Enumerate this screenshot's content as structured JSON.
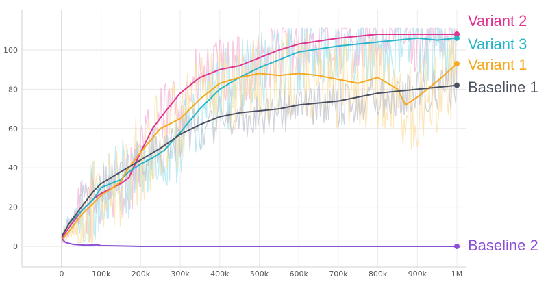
{
  "chart_data": {
    "type": "line",
    "title": "",
    "xlabel": "",
    "ylabel": "",
    "xlim": [
      0,
      1000000
    ],
    "ylim": [
      -5,
      115
    ],
    "grid": true,
    "legend_placement": "right, at line ends",
    "x_ticks": [
      {
        "value": 0,
        "label": "0"
      },
      {
        "value": 100000,
        "label": "100k"
      },
      {
        "value": 200000,
        "label": "200k"
      },
      {
        "value": 300000,
        "label": "300k"
      },
      {
        "value": 400000,
        "label": "400k"
      },
      {
        "value": 500000,
        "label": "500k"
      },
      {
        "value": 600000,
        "label": "600k"
      },
      {
        "value": 700000,
        "label": "700k"
      },
      {
        "value": 800000,
        "label": "800k"
      },
      {
        "value": 900000,
        "label": "900k"
      },
      {
        "value": 1000000,
        "label": "1M"
      }
    ],
    "y_ticks": [
      {
        "value": 0,
        "label": "0"
      },
      {
        "value": 20,
        "label": "20"
      },
      {
        "value": 40,
        "label": "40"
      },
      {
        "value": 60,
        "label": "60"
      },
      {
        "value": 80,
        "label": "80"
      },
      {
        "value": 100,
        "label": "100"
      }
    ],
    "series": [
      {
        "name": "Variant 2",
        "color": "#e0338f",
        "raw_color": "#f6b6d8",
        "noise": 18,
        "x": [
          0,
          20000,
          50000,
          80000,
          100000,
          130000,
          150000,
          170000,
          200000,
          230000,
          260000,
          300000,
          350000,
          400000,
          450000,
          500000,
          550000,
          600000,
          700000,
          800000,
          900000,
          1000000
        ],
        "y": [
          4,
          10,
          18,
          24,
          27,
          30,
          32,
          35,
          48,
          60,
          68,
          78,
          86,
          90,
          92,
          96,
          100,
          103,
          106,
          108,
          108,
          108
        ]
      },
      {
        "name": "Variant 3",
        "color": "#26b5c8",
        "raw_color": "#a8e6f0",
        "noise": 22,
        "x": [
          0,
          20000,
          50000,
          80000,
          100000,
          150000,
          170000,
          200000,
          230000,
          260000,
          300000,
          350000,
          400000,
          450000,
          500000,
          550000,
          600000,
          700000,
          800000,
          900000,
          950000,
          1000000
        ],
        "y": [
          5,
          12,
          18,
          24,
          30,
          34,
          38,
          42,
          45,
          49,
          58,
          70,
          80,
          86,
          91,
          95,
          99,
          102,
          104,
          106,
          105,
          106
        ]
      },
      {
        "name": "Variant 1",
        "color": "#f4a81d",
        "raw_color": "#fbe0a6",
        "noise": 24,
        "x": [
          0,
          20000,
          50000,
          80000,
          100000,
          130000,
          150000,
          160000,
          170000,
          200000,
          250000,
          300000,
          350000,
          400000,
          450000,
          500000,
          550000,
          600000,
          650000,
          700000,
          750000,
          800000,
          850000,
          870000,
          900000,
          950000,
          1000000
        ],
        "y": [
          3,
          8,
          16,
          22,
          26,
          30,
          33,
          37,
          40,
          48,
          60,
          65,
          75,
          83,
          86,
          88,
          87,
          88,
          87,
          85,
          83,
          86,
          80,
          72,
          76,
          84,
          93
        ]
      },
      {
        "name": "Baseline 1",
        "color": "#4b5060",
        "raw_color": "#c3c6d1",
        "noise": 12,
        "x": [
          0,
          20000,
          50000,
          80000,
          100000,
          150000,
          200000,
          250000,
          300000,
          350000,
          400000,
          450000,
          500000,
          550000,
          600000,
          650000,
          700000,
          750000,
          800000,
          850000,
          900000,
          950000,
          1000000
        ],
        "y": [
          5,
          12,
          20,
          28,
          32,
          38,
          44,
          50,
          57,
          62,
          66,
          68,
          69,
          70,
          72,
          73,
          74,
          76,
          78,
          79,
          80,
          81,
          82
        ]
      },
      {
        "name": "Baseline 2",
        "color": "#8b4fd6",
        "raw_color": "#d6c2f2",
        "noise": 0,
        "x": [
          0,
          10000,
          30000,
          60000,
          90000,
          100000,
          150000,
          200000,
          300000,
          500000,
          700000,
          1000000
        ],
        "y": [
          4,
          2,
          1,
          0.6,
          0.8,
          0.4,
          0.2,
          0,
          0,
          0,
          0,
          0
        ]
      }
    ]
  }
}
